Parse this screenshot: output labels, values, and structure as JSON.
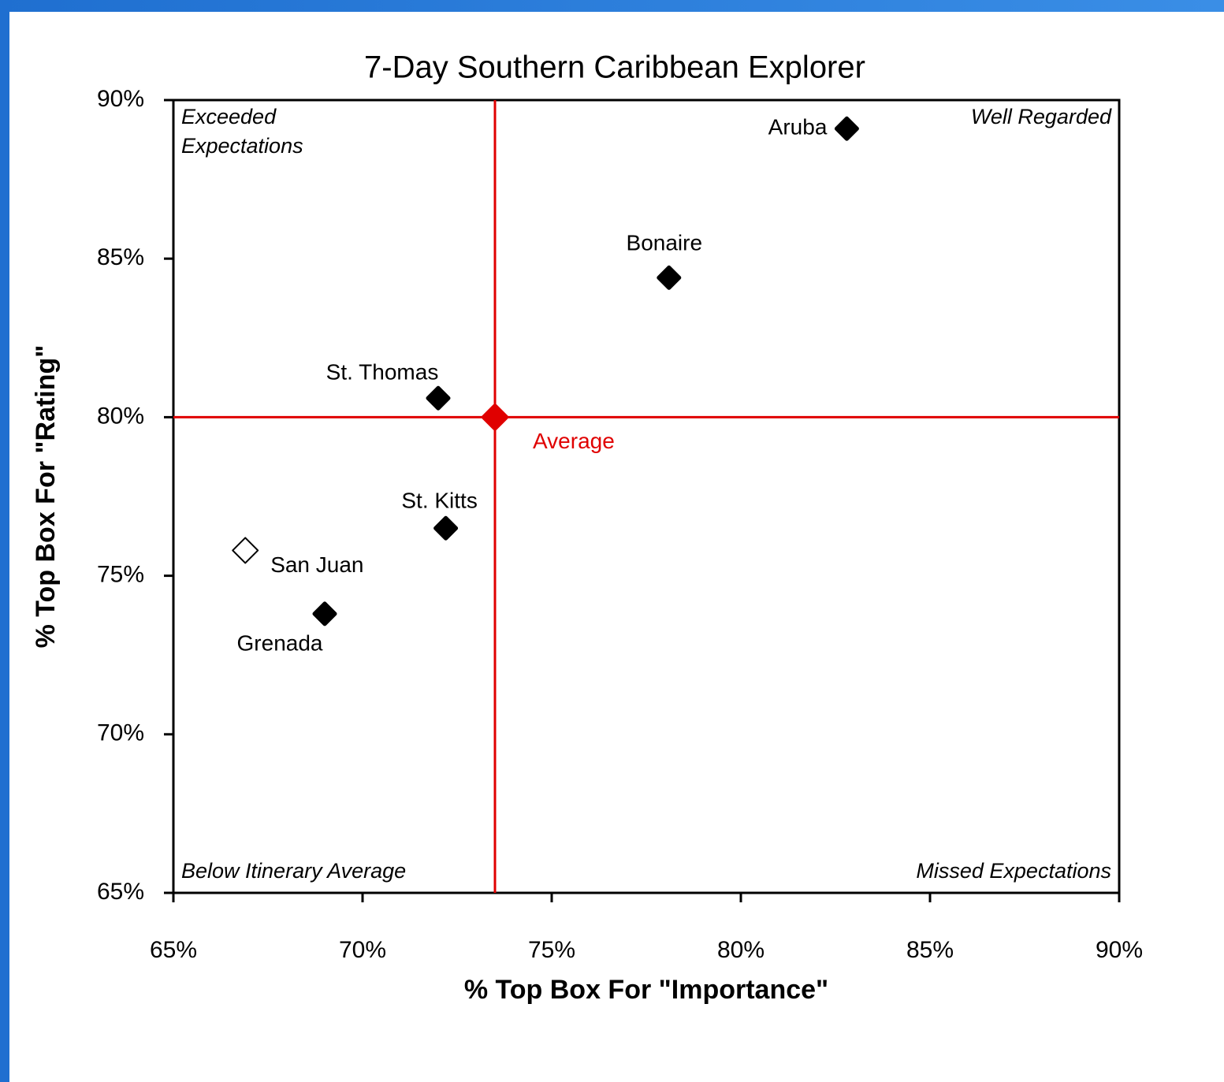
{
  "chart_data": {
    "type": "scatter",
    "title": "7-Day Southern Caribbean Explorer",
    "x_label": "% Top Box For \"Importance\"",
    "y_label": "% Top Box For \"Rating\"",
    "xlim": [
      65,
      90
    ],
    "ylim": [
      65,
      90
    ],
    "xticks": [
      {
        "value": 65,
        "label": "65%"
      },
      {
        "value": 70,
        "label": "70%"
      },
      {
        "value": 75,
        "label": "75%"
      },
      {
        "value": 80,
        "label": "80%"
      },
      {
        "value": 85,
        "label": "85%"
      },
      {
        "value": 90,
        "label": "90%"
      }
    ],
    "yticks": [
      {
        "value": 65,
        "label": "65%"
      },
      {
        "value": 70,
        "label": "70%"
      },
      {
        "value": 75,
        "label": "75%"
      },
      {
        "value": 80,
        "label": "80%"
      },
      {
        "value": 85,
        "label": "85%"
      },
      {
        "value": 90,
        "label": "90%"
      }
    ],
    "points": [
      {
        "label": "Aruba",
        "x": 82.8,
        "y": 89.1,
        "marker": "filled"
      },
      {
        "label": "Bonaire",
        "x": 78.1,
        "y": 84.4,
        "marker": "filled"
      },
      {
        "label": "St. Thomas",
        "x": 72.0,
        "y": 80.6,
        "marker": "filled"
      },
      {
        "label": "St. Kitts",
        "x": 72.2,
        "y": 76.5,
        "marker": "filled"
      },
      {
        "label": "San Juan",
        "x": 66.9,
        "y": 75.8,
        "marker": "open"
      },
      {
        "label": "Grenada",
        "x": 69.0,
        "y": 73.8,
        "marker": "filled"
      }
    ],
    "point_color": "#000000",
    "average": {
      "label": "Average",
      "x": 73.5,
      "y": 80.0,
      "color": "#e00000"
    },
    "annotations": [
      {
        "lines": [
          "Exceeded",
          "Expectations"
        ],
        "corner": "top-left"
      },
      {
        "lines": [
          "Well Regarded"
        ],
        "corner": "top-right"
      },
      {
        "lines": [
          "Below Itinerary Average"
        ],
        "corner": "bottom-left"
      },
      {
        "lines": [
          "Missed Expectations"
        ],
        "corner": "bottom-right"
      }
    ]
  }
}
